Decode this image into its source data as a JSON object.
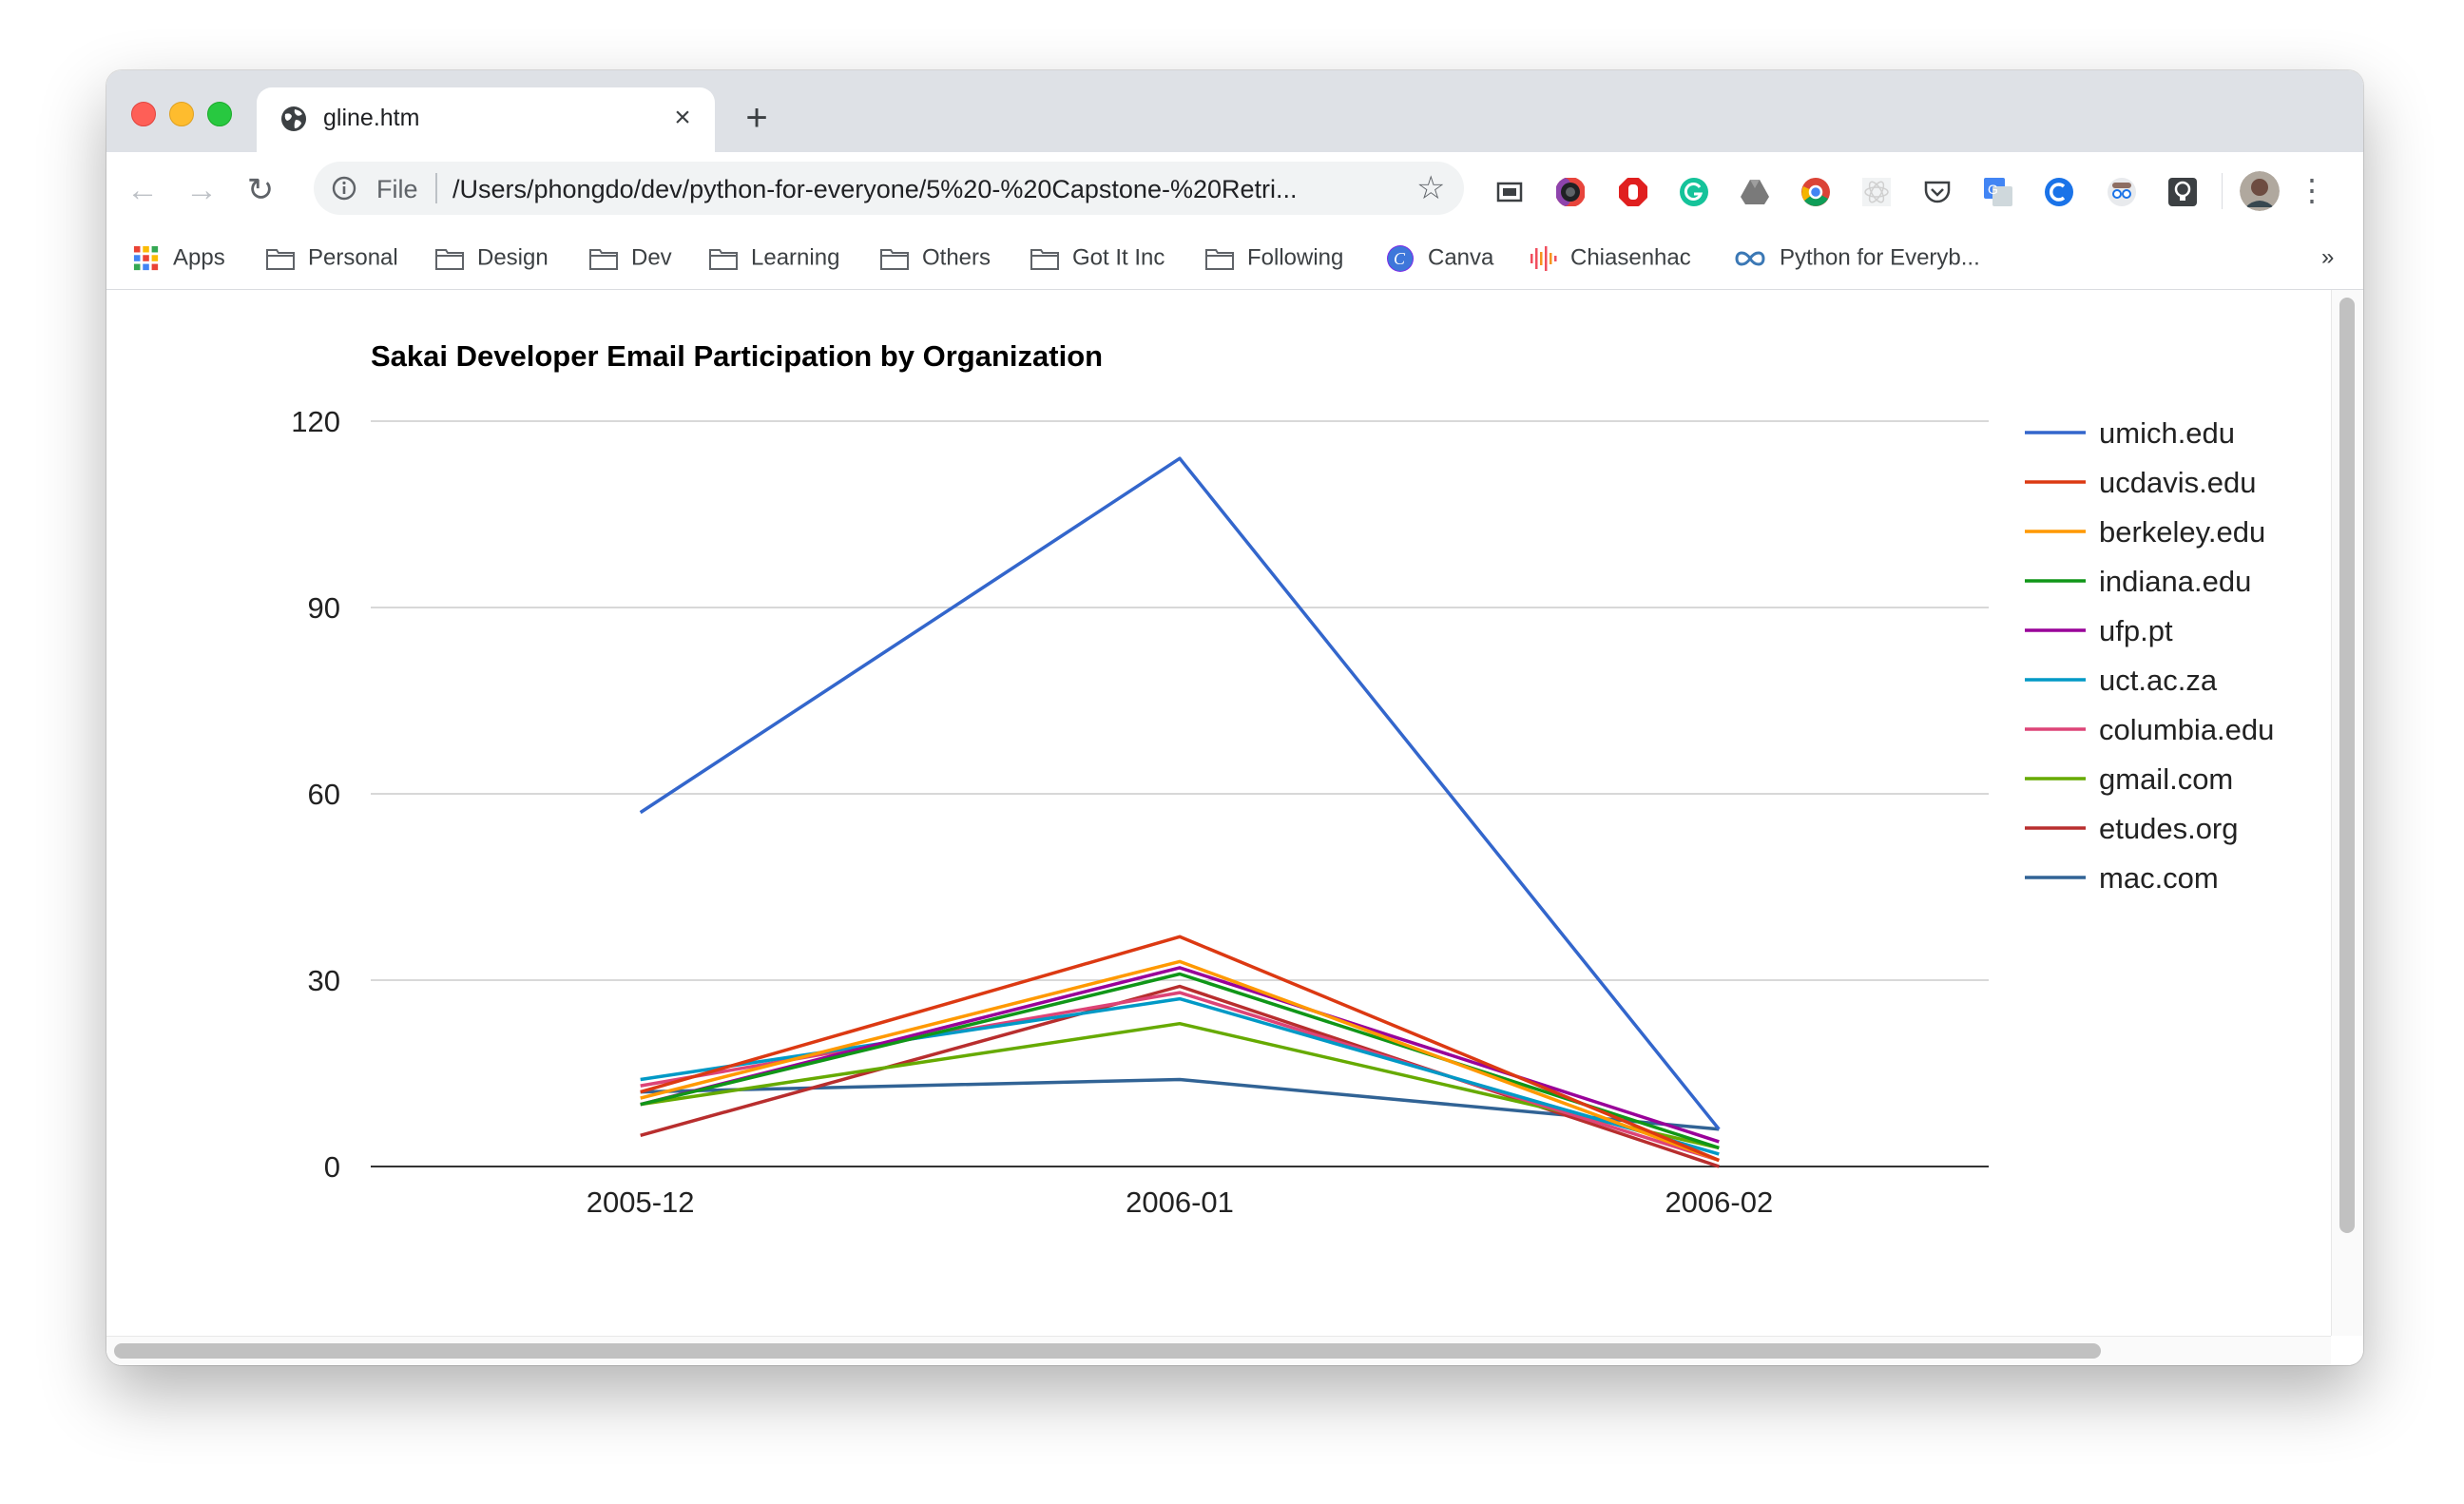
{
  "tab": {
    "title": "gline.htm",
    "close_label": "×",
    "newtab_label": "+"
  },
  "toolbar": {
    "back_label": "←",
    "forward_label": "→",
    "reload_label": "↻",
    "scheme_label": "File",
    "url": "/Users/phongdo/dev/python-for-everyone/5%20-%20Capstone-%20Retri...",
    "star_label": "☆",
    "menu_label": "⋮",
    "extensions": [
      "screenshot-icon",
      "obs-icon",
      "adblock-icon",
      "grammarly-icon",
      "drive-icon",
      "chrome-icon",
      "react-icon",
      "pocket-icon",
      "translate-icon",
      "vpn-icon",
      "spy-icon",
      "lightbulb-icon"
    ]
  },
  "bookmarks": {
    "items": [
      {
        "label": "Apps",
        "icon": "apps-grid-icon"
      },
      {
        "label": "Personal",
        "icon": "folder-icon"
      },
      {
        "label": "Design",
        "icon": "folder-icon"
      },
      {
        "label": "Dev",
        "icon": "folder-icon"
      },
      {
        "label": "Learning",
        "icon": "folder-icon"
      },
      {
        "label": "Others",
        "icon": "folder-icon"
      },
      {
        "label": "Got It Inc",
        "icon": "folder-icon"
      },
      {
        "label": "Following",
        "icon": "folder-icon"
      },
      {
        "label": "Canva",
        "icon": "canva-icon"
      },
      {
        "label": "Chiasenhac",
        "icon": "chiasenhac-icon"
      },
      {
        "label": "Python for Everyb...",
        "icon": "py4e-icon"
      }
    ],
    "overflow_label": "»"
  },
  "chart_data": {
    "type": "line",
    "title": "Sakai Developer Email Participation by Organization",
    "xlabel": "",
    "ylabel": "",
    "categories": [
      "2005-12",
      "2006-01",
      "2006-02"
    ],
    "ylim": [
      0,
      120
    ],
    "yticks": [
      0,
      30,
      60,
      90,
      120
    ],
    "grid": true,
    "legend_position": "right",
    "series": [
      {
        "name": "umich.edu",
        "color": "#3366cc",
        "values": [
          57,
          114,
          6
        ]
      },
      {
        "name": "ucdavis.edu",
        "color": "#dc3912",
        "values": [
          12,
          37,
          1
        ]
      },
      {
        "name": "berkeley.edu",
        "color": "#ff9900",
        "values": [
          11,
          33,
          1
        ]
      },
      {
        "name": "indiana.edu",
        "color": "#109618",
        "values": [
          10,
          31,
          3
        ]
      },
      {
        "name": "ufp.pt",
        "color": "#990099",
        "values": [
          10,
          32,
          4
        ]
      },
      {
        "name": "uct.ac.za",
        "color": "#0099c6",
        "values": [
          14,
          27,
          2
        ]
      },
      {
        "name": "columbia.edu",
        "color": "#dd4477",
        "values": [
          13,
          28,
          1
        ]
      },
      {
        "name": "gmail.com",
        "color": "#66aa00",
        "values": [
          10,
          23,
          3
        ]
      },
      {
        "name": "etudes.org",
        "color": "#b82e2e",
        "values": [
          5,
          29,
          0
        ]
      },
      {
        "name": "mac.com",
        "color": "#316395",
        "values": [
          12,
          14,
          6
        ]
      }
    ]
  }
}
